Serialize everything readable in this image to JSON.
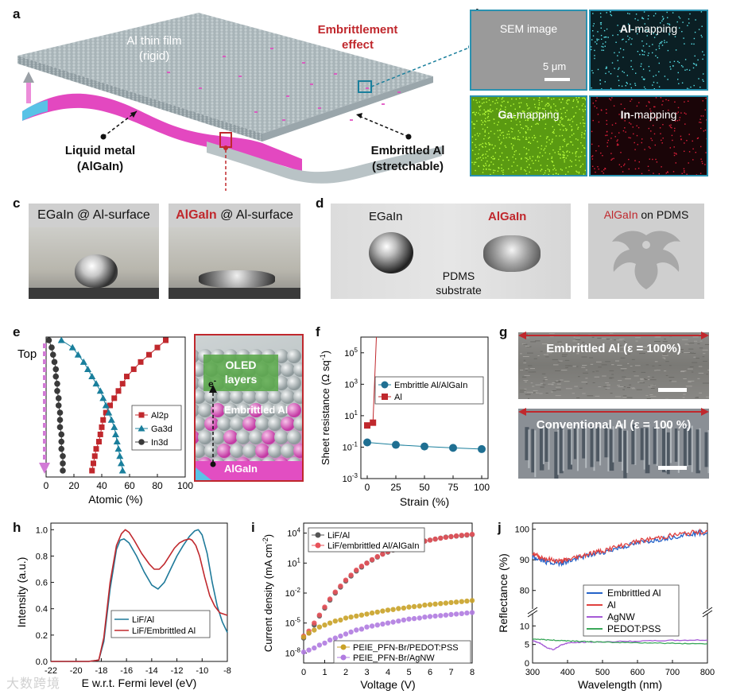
{
  "panel_labels": {
    "a": "a",
    "b": "b",
    "c": "c",
    "d": "d",
    "e": "e",
    "f": "f",
    "g": "g",
    "h": "h",
    "i": "i",
    "j": "j"
  },
  "panel_a": {
    "film_title_1": "Al thin film",
    "film_title_2": "(rigid)",
    "effect_1": "Embrittlement",
    "effect_2": "effect",
    "lm_1": "Liquid metal",
    "lm_2": "(AlGaIn)",
    "eal_1": "Embrittled Al",
    "eal_2": "(stretchable)"
  },
  "panel_b": {
    "sem": "SEM image",
    "scale": "5 μm",
    "al_el": "Al",
    "ga_el": "Ga",
    "in_el": "In",
    "mapping": "-mapping"
  },
  "panel_c": {
    "egain": "EGaIn",
    "algain": "AlGaIn",
    "surface": " @ Al-surface"
  },
  "panel_d": {
    "egain": "EGaIn",
    "algain": "AlGaIn",
    "substrate_1": "PDMS",
    "substrate_2": "substrate",
    "on_pdms_red": "AlGaIn",
    "on_pdms": " on PDMS"
  },
  "panel_e_inset": {
    "oled_1": "OLED",
    "oled_2": "layers",
    "electron": "e",
    "electron_sup": "-",
    "emb": "Embrittled Al",
    "algain": "AlGaIn"
  },
  "panel_g": {
    "top_label": "Embrittled Al (ε = 100%)",
    "bottom_label": "Conventional Al (ε = 100 %)"
  },
  "colors": {
    "red": "#c0282d",
    "teal": "#1a7f9c",
    "gray": "#3a3a3a",
    "magenta": "#e040b0",
    "gold": "#c9a227",
    "violet": "#b07be0",
    "blue": "#2563c9",
    "green": "#3aa85a"
  },
  "chart_data": [
    {
      "id": "e",
      "type": "line",
      "xlabel": "Atomic (%)",
      "ylabel": "",
      "top_label": "Top",
      "xlim": [
        0,
        100
      ],
      "xticks": [
        "0",
        "20",
        "40",
        "60",
        "80",
        "100"
      ],
      "depth_index": [
        0,
        1,
        2,
        3,
        4,
        5,
        6,
        7,
        8,
        9,
        10,
        11,
        12,
        13,
        14,
        15,
        16,
        17,
        18
      ],
      "series": [
        {
          "name": "Al2p",
          "marker": "square",
          "values": [
            86,
            80,
            74,
            68,
            63,
            58,
            55,
            52,
            49,
            46,
            43,
            41,
            40,
            39,
            38,
            36,
            35,
            34,
            33
          ]
        },
        {
          "name": "Ga3d",
          "marker": "triangle",
          "values": [
            11,
            19,
            23,
            27,
            30,
            33,
            36,
            39,
            41,
            43,
            45,
            47,
            49,
            50,
            51,
            52,
            53,
            54,
            55
          ]
        },
        {
          "name": "In3d",
          "marker": "circle",
          "values": [
            2,
            4,
            5,
            6,
            7,
            7,
            8,
            8,
            9,
            9,
            10,
            10,
            10,
            11,
            11,
            11,
            12,
            12,
            12
          ]
        }
      ]
    },
    {
      "id": "f",
      "type": "line",
      "xlabel": "Strain (%)",
      "ylabel": "Sheet resistance (Ω sq",
      "ylabel_sup": "-1",
      "ylabel_end": ")",
      "yscale": "log",
      "ylim_exp": [
        -3,
        6
      ],
      "xticks": [
        "0",
        "25",
        "50",
        "75",
        "100"
      ],
      "yticks": [
        {
          "b": "10",
          "e": "-3"
        },
        {
          "b": "10",
          "e": "-1"
        },
        {
          "b": "10",
          "e": "1"
        },
        {
          "b": "10",
          "e": "3"
        },
        {
          "b": "10",
          "e": "5"
        }
      ],
      "series": [
        {
          "name": "Embrittle Al/AlGaIn",
          "x": [
            0,
            25,
            50,
            75,
            100
          ],
          "y": [
            0.2,
            0.14,
            0.11,
            0.09,
            0.075
          ]
        },
        {
          "name": "Al",
          "x": [
            0,
            5
          ],
          "y": [
            2.4,
            3.6
          ],
          "rise_to": 1000000
        }
      ]
    },
    {
      "id": "h",
      "type": "line",
      "xlabel": "E w.r.t. Fermi level (eV)",
      "ylabel": "Intensity (a.u.)",
      "xlim": [
        -22,
        -8
      ],
      "ylim": [
        0,
        1.05
      ],
      "xticks": [
        "-22",
        "-20",
        "-18",
        "-16",
        "-14",
        "-12",
        "-10",
        "-8"
      ],
      "yticks": [
        "0.0",
        "0.2",
        "0.4",
        "0.6",
        "0.8",
        "1.0"
      ],
      "series": [
        {
          "name": "LiF/Al",
          "x": [
            -22,
            -19,
            -18.2,
            -17.8,
            -17.3,
            -16.8,
            -16.5,
            -16.2,
            -15.8,
            -15.2,
            -14.6,
            -14.0,
            -13.5,
            -13.0,
            -12.5,
            -12.0,
            -11.5,
            -11.0,
            -10.6,
            -10.3,
            -10.0,
            -9.6,
            -9.2,
            -8.8,
            -8.4,
            -8.0
          ],
          "y": [
            0,
            0,
            0.01,
            0.15,
            0.55,
            0.85,
            0.92,
            0.93,
            0.9,
            0.8,
            0.68,
            0.58,
            0.55,
            0.6,
            0.7,
            0.8,
            0.88,
            0.95,
            0.99,
            1.0,
            0.96,
            0.82,
            0.6,
            0.42,
            0.3,
            0.22
          ]
        },
        {
          "name": "LiF/Embrittled Al",
          "x": [
            -22,
            -19,
            -18.2,
            -17.8,
            -17.3,
            -16.8,
            -16.4,
            -16.1,
            -15.8,
            -15.4,
            -14.8,
            -14.2,
            -13.8,
            -13.4,
            -13.0,
            -12.6,
            -12.2,
            -11.8,
            -11.4,
            -11.0,
            -10.8,
            -10.5,
            -10.2,
            -9.8,
            -9.4,
            -9.0,
            -8.6,
            -8.0
          ],
          "y": [
            0,
            0,
            0.01,
            0.18,
            0.6,
            0.88,
            0.97,
            1.0,
            0.98,
            0.92,
            0.82,
            0.74,
            0.7,
            0.7,
            0.74,
            0.8,
            0.86,
            0.9,
            0.92,
            0.93,
            0.92,
            0.88,
            0.8,
            0.64,
            0.5,
            0.42,
            0.37,
            0.35
          ]
        }
      ]
    },
    {
      "id": "i",
      "type": "scatter",
      "xlabel": "Voltage (V)",
      "ylabel": "Current density (mA cm",
      "ylabel_sup": "-2",
      "ylabel_end": ")",
      "yscale": "log",
      "xlim": [
        0,
        8
      ],
      "ylim_exp": [
        -9,
        5
      ],
      "xticks": [
        "0",
        "1",
        "2",
        "3",
        "4",
        "5",
        "6",
        "7",
        "8"
      ],
      "yticks": [
        {
          "b": "10",
          "e": "-8"
        },
        {
          "b": "10",
          "e": "-5"
        },
        {
          "b": "10",
          "e": "-2"
        },
        {
          "b": "10",
          "e": "1"
        },
        {
          "b": "10",
          "e": "4"
        }
      ],
      "series": [
        {
          "name": "LiF/Al",
          "log10_y": [
            -6.5,
            -6.0,
            -5.2,
            -4.3,
            -3.5,
            -2.7,
            -2.0,
            -1.4,
            -0.8,
            -0.3,
            0.2,
            0.6,
            1.0,
            1.3,
            1.6,
            1.9,
            2.1,
            2.3,
            2.5,
            2.7,
            2.85,
            3.0,
            3.1,
            3.2,
            3.3,
            3.4,
            3.5,
            3.6,
            3.65,
            3.7,
            3.75,
            3.8,
            3.85
          ]
        },
        {
          "name": "LiF/embrittled Al/AlGaIn",
          "log10_y": [
            -6.3,
            -5.8,
            -5.0,
            -4.2,
            -3.4,
            -2.6,
            -1.9,
            -1.3,
            -0.7,
            -0.2,
            0.3,
            0.7,
            1.0,
            1.35,
            1.65,
            1.9,
            2.15,
            2.35,
            2.55,
            2.7,
            2.85,
            3.0,
            3.1,
            3.2,
            3.3,
            3.4,
            3.5,
            3.58,
            3.65,
            3.72,
            3.78,
            3.83,
            3.88
          ]
        },
        {
          "name": "PEIE_PFN-Br/PEDOT:PSS",
          "log10_y": [
            -6.4,
            -6.0,
            -5.7,
            -5.4,
            -5.2,
            -5.0,
            -4.8,
            -4.7,
            -4.5,
            -4.4,
            -4.3,
            -4.2,
            -4.1,
            -4.0,
            -3.9,
            -3.8,
            -3.7,
            -3.65,
            -3.55,
            -3.5,
            -3.4,
            -3.35,
            -3.3,
            -3.2,
            -3.15,
            -3.1,
            -3.05,
            -3.0,
            -2.95,
            -2.9,
            -2.85,
            -2.8,
            -2.75
          ]
        },
        {
          "name": "PEIE_PFN-Br/AgNW",
          "log10_y": [
            -7.9,
            -7.7,
            -7.5,
            -7.2,
            -7.0,
            -6.7,
            -6.5,
            -6.3,
            -6.1,
            -5.9,
            -5.7,
            -5.6,
            -5.4,
            -5.3,
            -5.2,
            -5.1,
            -5.0,
            -4.9,
            -4.8,
            -4.7,
            -4.6,
            -4.55,
            -4.5,
            -4.4,
            -4.35,
            -4.3,
            -4.25,
            -4.2,
            -4.15,
            -4.1,
            -4.05,
            -4.0,
            -3.95
          ]
        }
      ]
    },
    {
      "id": "j",
      "type": "line",
      "xlabel": "Wavelength (nm)",
      "ylabel": "Reflectance (%)",
      "xlim": [
        300,
        800
      ],
      "xticks": [
        "300",
        "400",
        "500",
        "600",
        "700",
        "800"
      ],
      "yticks_upper": [
        "80",
        "90",
        "100"
      ],
      "yticks_lower": [
        "0",
        "5",
        "10"
      ],
      "series": [
        {
          "name": "Embrittled Al",
          "x": [
            300,
            320,
            350,
            380,
            400,
            430,
            460,
            500,
            550,
            600,
            650,
            700,
            750,
            800
          ],
          "y": [
            91,
            90,
            89,
            89,
            89.5,
            90.5,
            91.5,
            92.5,
            94,
            95.5,
            96.5,
            97.5,
            98.5,
            99
          ]
        },
        {
          "name": "Al",
          "x": [
            300,
            320,
            350,
            380,
            400,
            430,
            460,
            500,
            550,
            600,
            650,
            700,
            750,
            800
          ],
          "y": [
            92,
            91,
            90,
            89.5,
            90,
            91,
            92,
            93,
            94.5,
            96,
            97,
            98,
            98.8,
            99.3
          ]
        },
        {
          "name": "AgNW",
          "x": [
            300,
            320,
            340,
            360,
            380,
            400,
            450,
            500,
            600,
            700,
            800
          ],
          "y": [
            6,
            5.4,
            4.2,
            3.6,
            4.8,
            5.4,
            5.6,
            5.7,
            5.9,
            6.1,
            6.2
          ]
        },
        {
          "name": "PEDOT:PSS",
          "x": [
            300,
            350,
            400,
            450,
            500,
            600,
            700,
            800
          ],
          "y": [
            6.5,
            6.2,
            6.0,
            5.8,
            5.6,
            5.5,
            5.3,
            5.2
          ]
        }
      ]
    }
  ],
  "watermark": "大数跨境"
}
